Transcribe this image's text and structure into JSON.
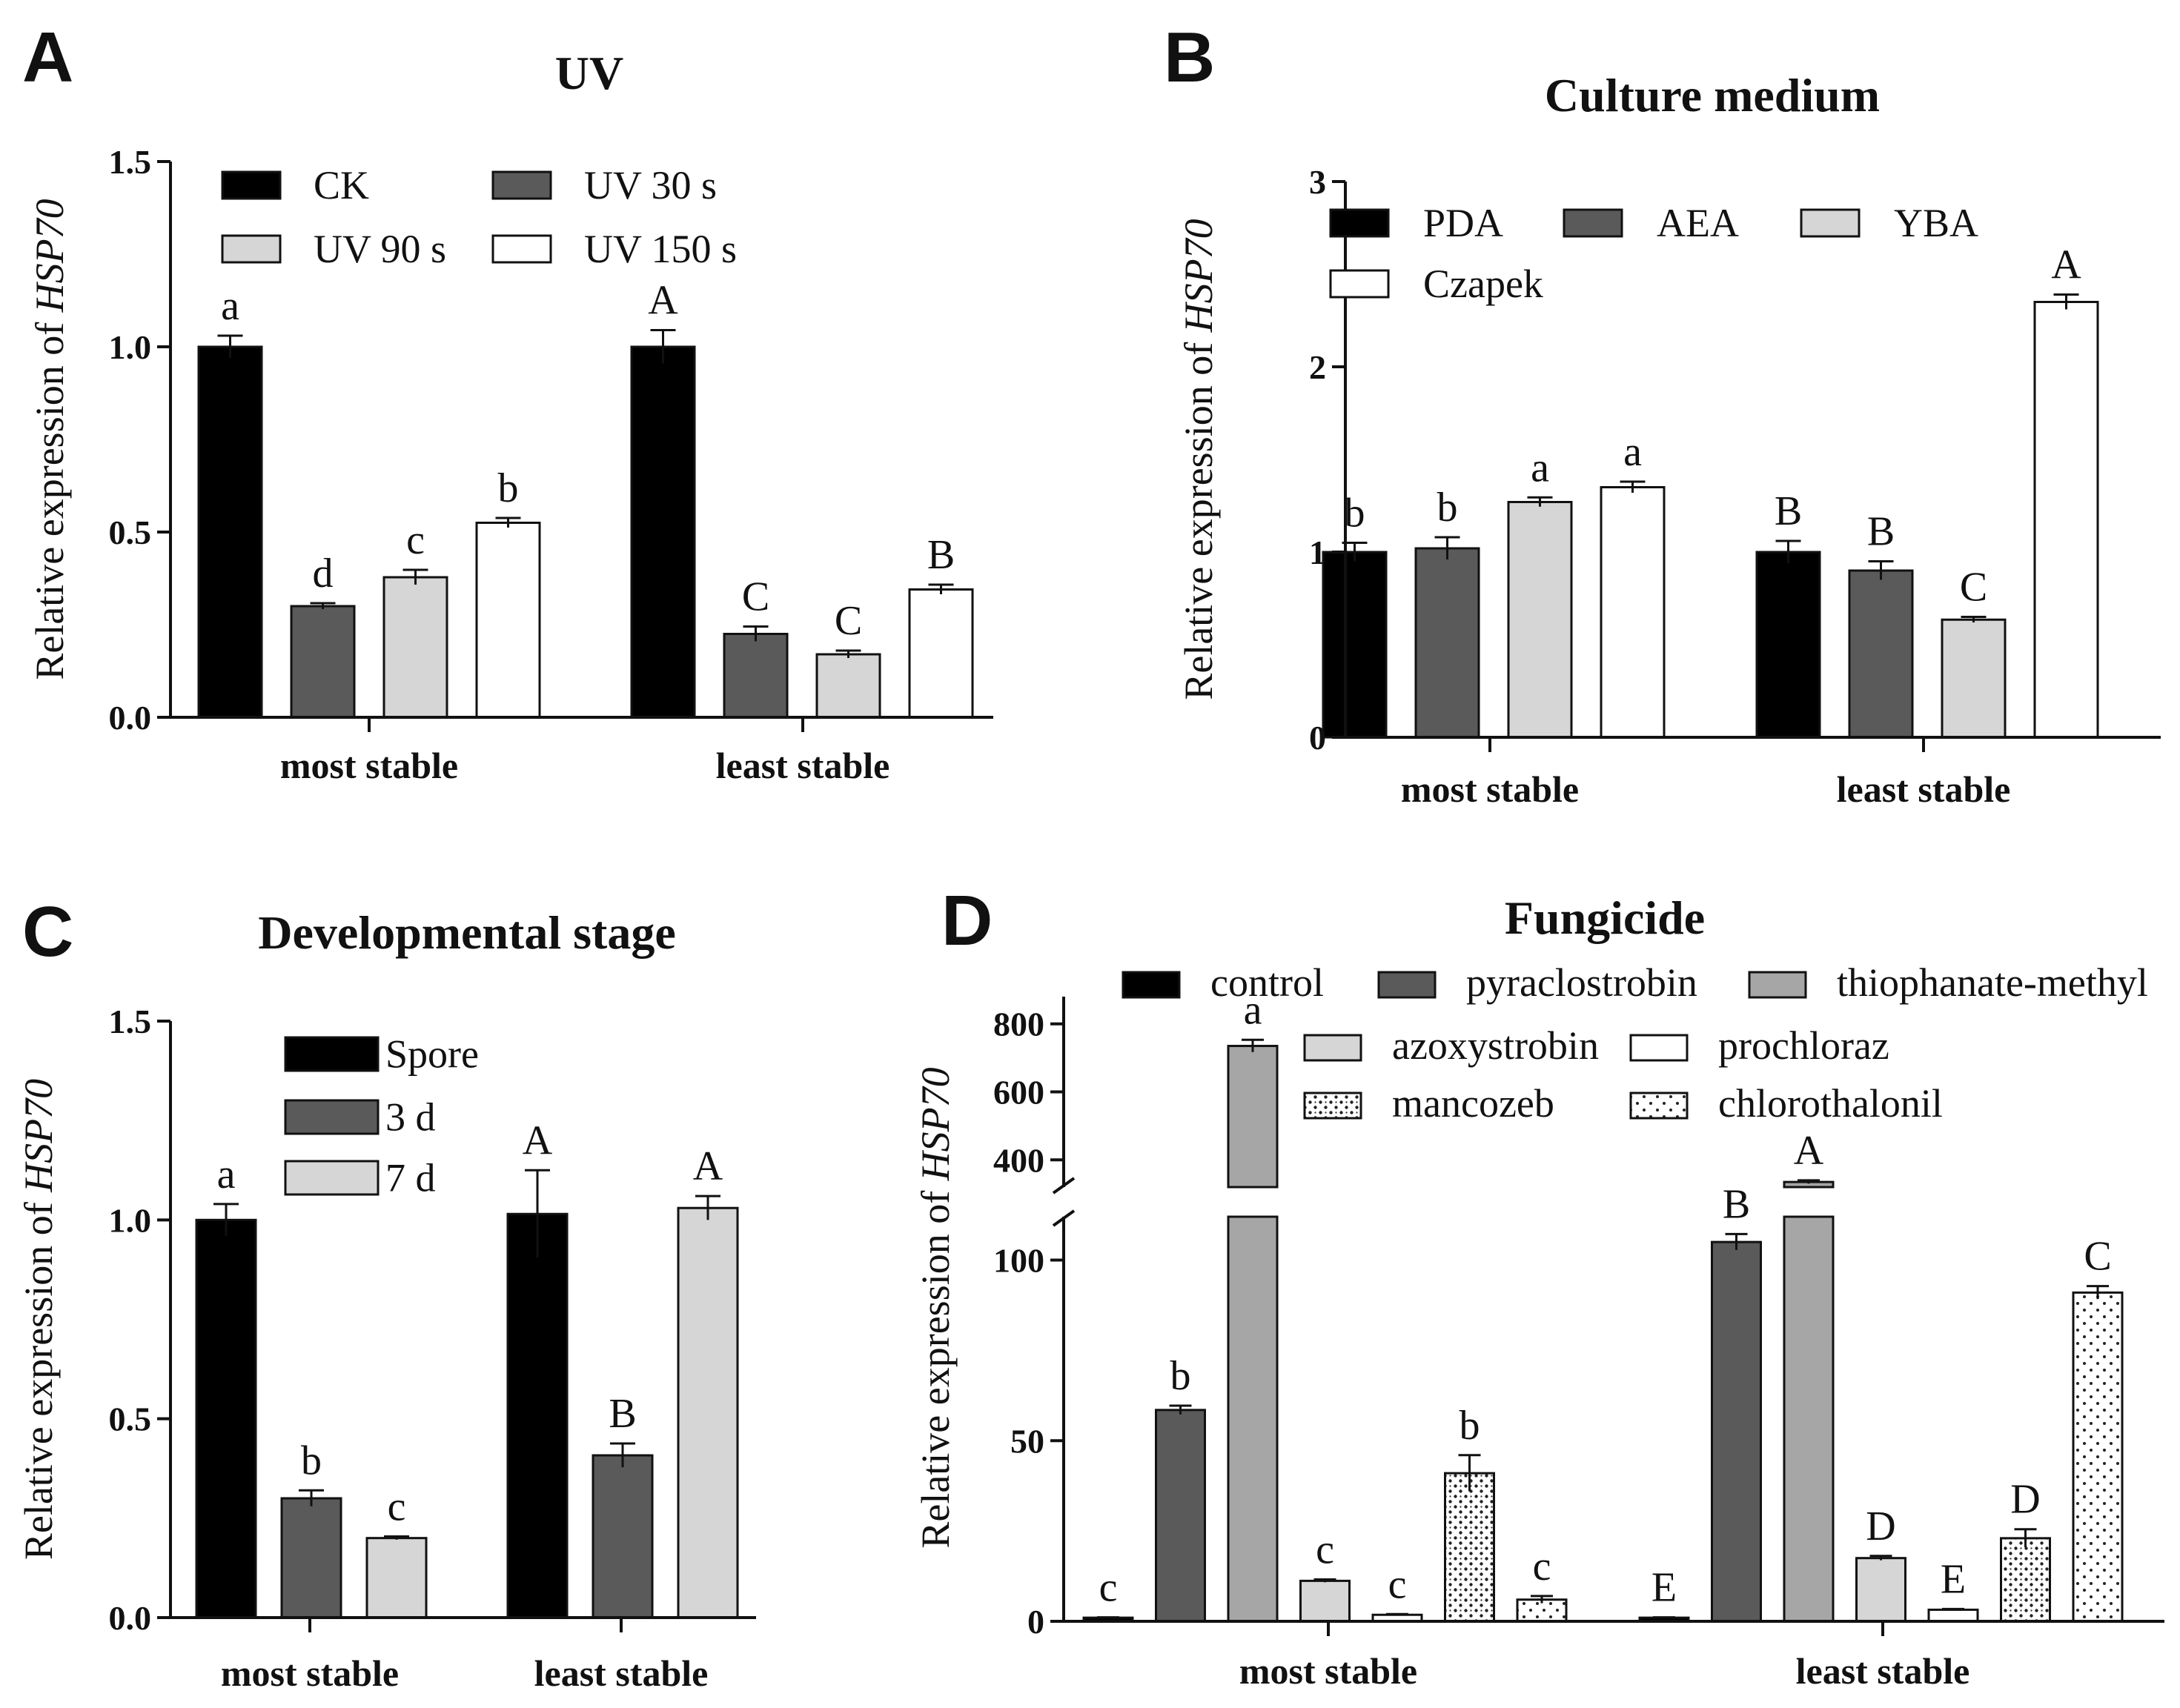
{
  "chart_data": [
    {
      "panel": "A",
      "type": "bar",
      "title": "UV",
      "ylabel_prefix": "Relative expression of ",
      "ylabel_gene": "HSP70",
      "ylim": [
        0,
        1.5
      ],
      "yticks": [
        "0.0",
        "0.5",
        "1.0",
        "1.5"
      ],
      "categories": [
        "most stable",
        "least  stable"
      ],
      "series": [
        {
          "name": "CK",
          "fill": "#000000",
          "pattern": "solid",
          "values": [
            1.0,
            1.0
          ],
          "errors": [
            0.03,
            0.045
          ],
          "letters": [
            "a",
            "A"
          ]
        },
        {
          "name": "UV 30 s",
          "fill": "#5a5a5a",
          "pattern": "solid",
          "values": [
            0.3,
            0.225
          ],
          "errors": [
            0.008,
            0.02
          ],
          "letters": [
            "d",
            "C"
          ]
        },
        {
          "name": "UV 90 s",
          "fill": "#d6d6d6",
          "pattern": "solid",
          "values": [
            0.378,
            0.17
          ],
          "errors": [
            0.02,
            0.01
          ],
          "letters": [
            "c",
            "C"
          ]
        },
        {
          "name": "UV 150 s",
          "fill": "#ffffff",
          "pattern": "solid",
          "values": [
            0.525,
            0.345
          ],
          "errors": [
            0.013,
            0.013
          ],
          "letters": [
            "b",
            "B"
          ]
        }
      ],
      "legend_columns": 2
    },
    {
      "panel": "B",
      "type": "bar",
      "title": "Culture medium",
      "ylabel_prefix": "Relative expression of ",
      "ylabel_gene": "HSP70",
      "ylim": [
        0,
        3
      ],
      "yticks": [
        "0",
        "1",
        "2",
        "3"
      ],
      "categories": [
        "most stable",
        "least stable"
      ],
      "series": [
        {
          "name": "PDA",
          "fill": "#000000",
          "pattern": "solid",
          "values": [
            1.0,
            1.0
          ],
          "errors": [
            0.05,
            0.06
          ],
          "letters": [
            "b",
            "B"
          ]
        },
        {
          "name": "AEA",
          "fill": "#5a5a5a",
          "pattern": "solid",
          "values": [
            1.02,
            0.9
          ],
          "errors": [
            0.06,
            0.05
          ],
          "letters": [
            "b",
            "B"
          ]
        },
        {
          "name": "YBA",
          "fill": "#d6d6d6",
          "pattern": "solid",
          "values": [
            1.27,
            0.635
          ],
          "errors": [
            0.025,
            0.015
          ],
          "letters": [
            "a",
            "C"
          ]
        },
        {
          "name": "Czapek",
          "fill": "#ffffff",
          "pattern": "solid",
          "values": [
            1.35,
            2.35
          ],
          "errors": [
            0.03,
            0.04
          ],
          "letters": [
            "a",
            "A"
          ]
        }
      ],
      "legend_columns": 3
    },
    {
      "panel": "C",
      "type": "bar",
      "title": "Developmental stage",
      "ylabel_prefix": "Relative expression of ",
      "ylabel_gene": "HSP70",
      "ylim": [
        0,
        1.5
      ],
      "yticks": [
        "0.0",
        "0.5",
        "1.0",
        "1.5"
      ],
      "categories": [
        "most stable",
        "least stable"
      ],
      "series": [
        {
          "name": "Spore",
          "fill": "#000000",
          "pattern": "solid",
          "values": [
            1.0,
            1.015
          ],
          "errors": [
            0.04,
            0.11
          ],
          "letters": [
            "a",
            "A"
          ]
        },
        {
          "name": "3 d",
          "fill": "#5a5a5a",
          "pattern": "solid",
          "values": [
            0.3,
            0.408
          ],
          "errors": [
            0.02,
            0.03
          ],
          "letters": [
            "b",
            "B"
          ]
        },
        {
          "name": "7 d",
          "fill": "#d6d6d6",
          "pattern": "solid",
          "values": [
            0.2,
            1.03
          ],
          "errors": [
            0.004,
            0.03
          ],
          "letters": [
            "c",
            "A"
          ]
        }
      ],
      "legend_columns": 1
    },
    {
      "panel": "D",
      "type": "bar",
      "title": "Fungicide",
      "ylabel_prefix": "Relative expression of ",
      "ylabel_gene": "HSP70",
      "broken_axis": true,
      "lower_ylim": [
        0,
        112
      ],
      "lower_yticks": [
        0,
        50,
        100
      ],
      "upper_ylim": [
        320,
        880
      ],
      "upper_yticks": [
        400,
        600,
        800
      ],
      "categories": [
        "most stable",
        "least stable"
      ],
      "series": [
        {
          "name": "control",
          "fill": "#000000",
          "pattern": "solid",
          "values": [
            1.0,
            1.0
          ],
          "errors": [
            0.1,
            0.1
          ],
          "letters": [
            "c",
            "E"
          ]
        },
        {
          "name": "pyraclostrobin",
          "fill": "#5a5a5a",
          "pattern": "solid",
          "values": [
            58.5,
            105
          ],
          "errors": [
            1.2,
            2.2
          ],
          "letters": [
            "b",
            "B"
          ]
        },
        {
          "name": "thiophanate-methyl",
          "fill": "#a6a6a6",
          "pattern": "solid",
          "values": [
            735,
            335
          ],
          "errors": [
            18,
            5
          ],
          "letters": [
            "a",
            "A"
          ]
        },
        {
          "name": "azoxystrobin",
          "fill": "#d6d6d6",
          "pattern": "solid",
          "values": [
            11.2,
            17.5
          ],
          "errors": [
            0.4,
            0.6
          ],
          "letters": [
            "c",
            "D"
          ]
        },
        {
          "name": "prochloraz",
          "fill": "#ffffff",
          "pattern": "solid",
          "values": [
            1.8,
            3.2
          ],
          "errors": [
            0.2,
            0.2
          ],
          "letters": [
            "c",
            "E"
          ]
        },
        {
          "name": "mancozeb",
          "fill": "#ffffff",
          "pattern": "dots-dense",
          "values": [
            41,
            23
          ],
          "errors": [
            5,
            2.5
          ],
          "letters": [
            "b",
            "D"
          ]
        },
        {
          "name": "chlorothalonil",
          "fill": "#ffffff",
          "pattern": "dots-sparse",
          "values": [
            6,
            91
          ],
          "errors": [
            1,
            1.8
          ],
          "letters": [
            "c",
            "C"
          ]
        }
      ]
    }
  ]
}
